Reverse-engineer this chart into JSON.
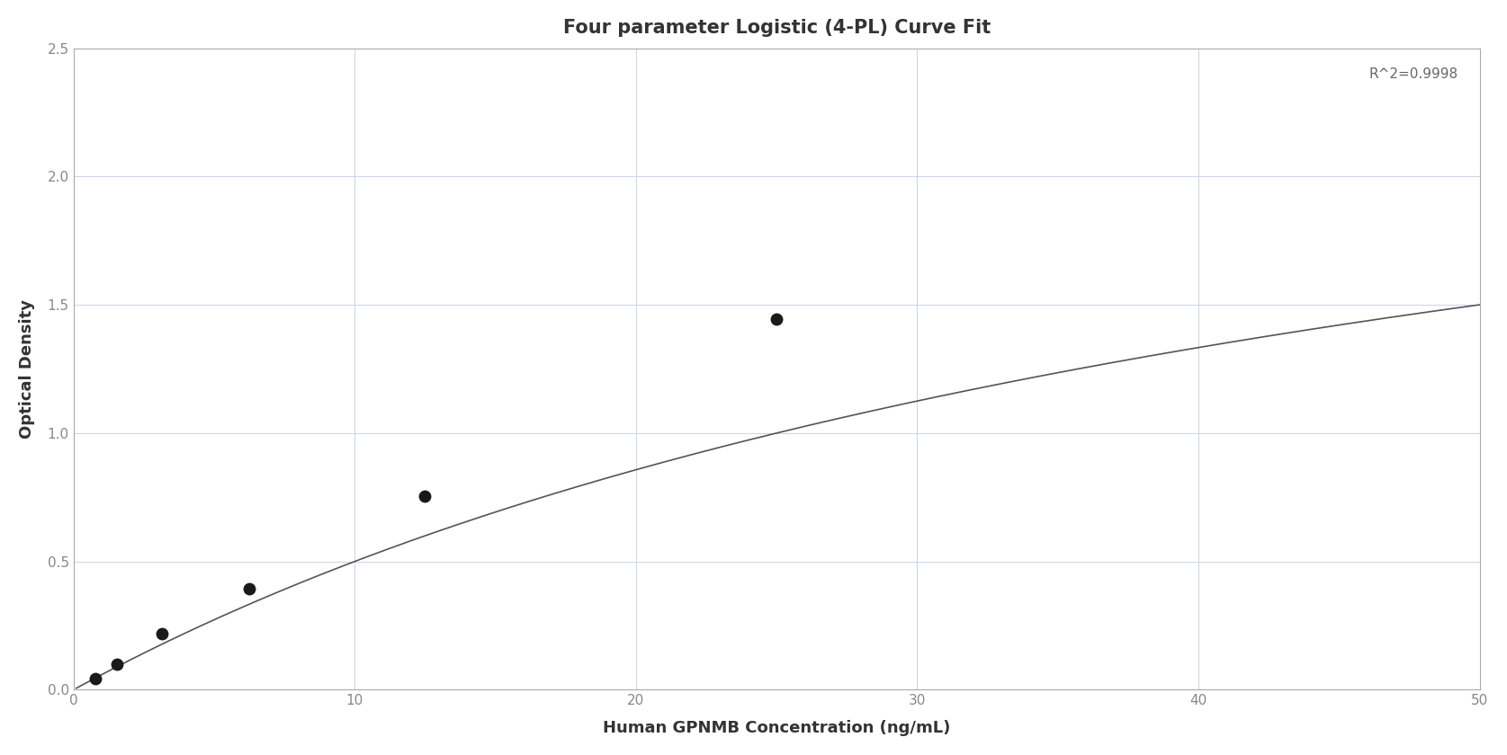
{
  "title": "Four parameter Logistic (4-PL) Curve Fit",
  "xlabel": "Human GPNMB Concentration (ng/mL)",
  "ylabel": "Optical Density",
  "r_squared": "R^2=0.9998",
  "data_x": [
    0.78,
    1.56,
    3.13,
    6.25,
    12.5,
    25.0
  ],
  "data_y": [
    0.045,
    0.1,
    0.22,
    0.395,
    0.755,
    1.445
  ],
  "xlim": [
    0,
    50
  ],
  "ylim": [
    0,
    2.5
  ],
  "xticks": [
    0,
    10,
    20,
    30,
    40,
    50
  ],
  "yticks": [
    0,
    0.5,
    1.0,
    1.5,
    2.0,
    2.5
  ],
  "marker_color": "#1a1a1a",
  "marker_size": 10,
  "line_color": "#555555",
  "line_width": 1.2,
  "grid_color": "#c8d4e8",
  "background_color": "#ffffff",
  "title_fontsize": 15,
  "label_fontsize": 13,
  "tick_fontsize": 11,
  "annotation_fontsize": 11,
  "tick_color": "#888888",
  "spine_color": "#aaaaaa"
}
